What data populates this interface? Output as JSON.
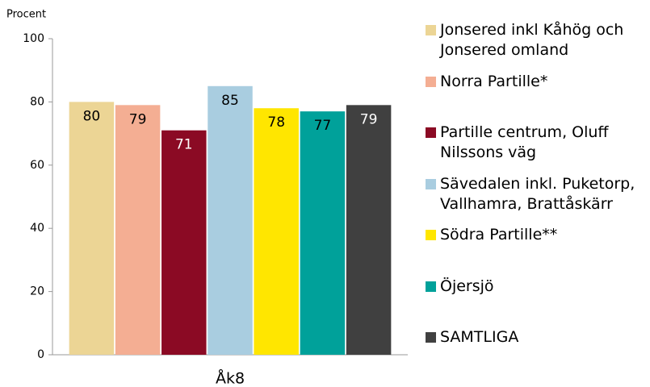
{
  "chart_data": {
    "type": "bar",
    "y_label": "Procent",
    "categories": [
      "Åk8"
    ],
    "series": [
      {
        "name": "Jonsered inkl Kåhög och Jonsered omland",
        "color": "#ecd595",
        "values": [
          80
        ]
      },
      {
        "name": "Norra Partille*",
        "color": "#f4ae93",
        "values": [
          79
        ]
      },
      {
        "name": "Partille centrum, Oluff Nilssons väg",
        "color": "#8b0a24",
        "values": [
          71
        ]
      },
      {
        "name": "Sävedalen inkl. Puketorp, Vallhamra, Brattåskärr",
        "color": "#a9cde0",
        "values": [
          85
        ]
      },
      {
        "name": "Södra Partille**",
        "color": "#ffe600",
        "values": [
          78
        ]
      },
      {
        "name": "Öjersjö",
        "color": "#00a19a",
        "values": [
          77
        ]
      },
      {
        "name": "SAMTLIGA",
        "color": "#404040",
        "values": [
          79
        ]
      }
    ],
    "ylim": [
      0,
      100
    ],
    "yticks": [
      0,
      20,
      40,
      60,
      80,
      100
    ],
    "legend": "right"
  }
}
